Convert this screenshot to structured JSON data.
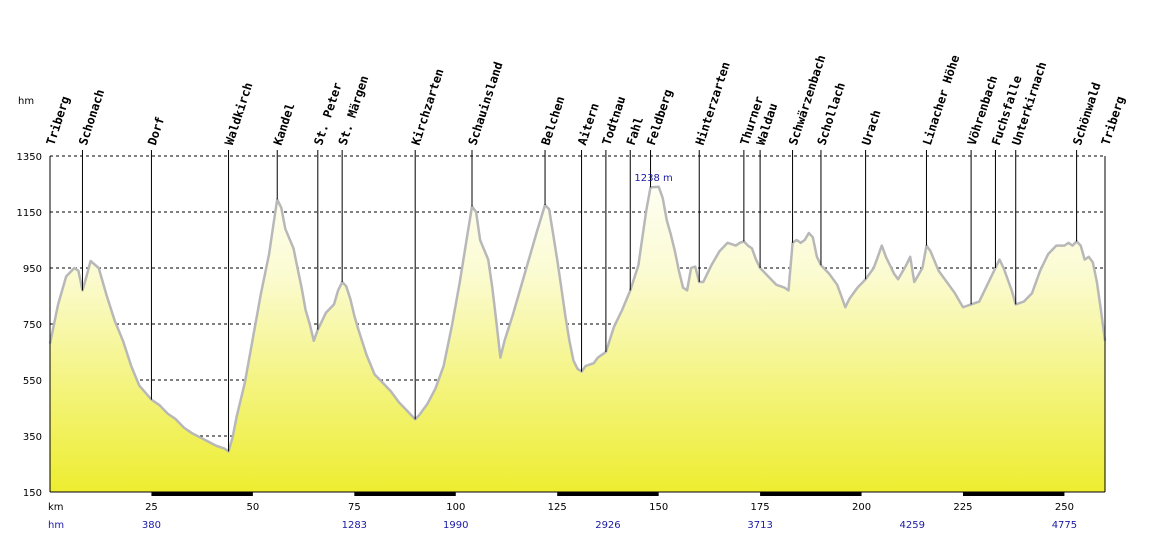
{
  "chart_data": {
    "type": "area",
    "y_unit_label": "hm",
    "x_unit_label": "km",
    "ascent_row_label": "hm",
    "ylim": [
      150,
      1350
    ],
    "xlim": [
      0,
      260
    ],
    "y_ticks": [
      150,
      350,
      550,
      750,
      950,
      1150,
      1350
    ],
    "x_ticks": [
      25,
      50,
      75,
      100,
      125,
      150,
      175,
      200,
      225,
      250
    ],
    "cumulative_ascent": [
      {
        "km": 25,
        "label": "380"
      },
      {
        "km": 75,
        "label": "1283"
      },
      {
        "km": 100,
        "label": "1990"
      },
      {
        "km": 137.5,
        "label": "2926"
      },
      {
        "km": 175,
        "label": "3713"
      },
      {
        "km": 212.5,
        "label": "4259"
      },
      {
        "km": 250,
        "label": "4775"
      }
    ],
    "peak_annotation": {
      "km": 149,
      "label": "1238 m"
    },
    "places": [
      {
        "name": "Triberg",
        "km": 0
      },
      {
        "name": "Schonach",
        "km": 8
      },
      {
        "name": "Dorf",
        "km": 25
      },
      {
        "name": "Waldkirch",
        "km": 44
      },
      {
        "name": "Kandel",
        "km": 56
      },
      {
        "name": "St. Peter",
        "km": 66
      },
      {
        "name": "St. Märgen",
        "km": 72
      },
      {
        "name": "Kirchzarten",
        "km": 90
      },
      {
        "name": "Schauinsland",
        "km": 104
      },
      {
        "name": "Belchen",
        "km": 122
      },
      {
        "name": "Aitern",
        "km": 131
      },
      {
        "name": "Todtnau",
        "km": 137
      },
      {
        "name": "Fahl",
        "km": 143
      },
      {
        "name": "Feldberg",
        "km": 148
      },
      {
        "name": "Hinterzarten",
        "km": 160
      },
      {
        "name": "Thurner",
        "km": 171
      },
      {
        "name": "Waldau",
        "km": 175
      },
      {
        "name": "Schwärzenbach",
        "km": 183
      },
      {
        "name": "Schollach",
        "km": 190
      },
      {
        "name": "Urach",
        "km": 201
      },
      {
        "name": "Linacher Höhe",
        "km": 216
      },
      {
        "name": "Vöhrenbach",
        "km": 227
      },
      {
        "name": "Fuchsfalle",
        "km": 233
      },
      {
        "name": "Unterkirnach",
        "km": 238
      },
      {
        "name": "Schönwald",
        "km": 253
      },
      {
        "name": "Triberg",
        "km": 260
      }
    ],
    "profile": [
      [
        0,
        680
      ],
      [
        2,
        820
      ],
      [
        4,
        920
      ],
      [
        6,
        950
      ],
      [
        7,
        940
      ],
      [
        8,
        870
      ],
      [
        9,
        920
      ],
      [
        10,
        975
      ],
      [
        12,
        950
      ],
      [
        14,
        850
      ],
      [
        16,
        760
      ],
      [
        18,
        690
      ],
      [
        20,
        600
      ],
      [
        22,
        530
      ],
      [
        25,
        480
      ],
      [
        27,
        460
      ],
      [
        29,
        430
      ],
      [
        31,
        410
      ],
      [
        33,
        380
      ],
      [
        35,
        360
      ],
      [
        37,
        345
      ],
      [
        39,
        330
      ],
      [
        41,
        315
      ],
      [
        43,
        305
      ],
      [
        44,
        295
      ],
      [
        45,
        345
      ],
      [
        46,
        420
      ],
      [
        48,
        540
      ],
      [
        50,
        700
      ],
      [
        52,
        860
      ],
      [
        54,
        1000
      ],
      [
        55,
        1100
      ],
      [
        56,
        1195
      ],
      [
        57,
        1165
      ],
      [
        58,
        1090
      ],
      [
        60,
        1020
      ],
      [
        61,
        950
      ],
      [
        62,
        880
      ],
      [
        63,
        800
      ],
      [
        64,
        750
      ],
      [
        65,
        690
      ],
      [
        66,
        730
      ],
      [
        67,
        760
      ],
      [
        68,
        790
      ],
      [
        70,
        820
      ],
      [
        71,
        870
      ],
      [
        72,
        900
      ],
      [
        73,
        885
      ],
      [
        74,
        840
      ],
      [
        75,
        780
      ],
      [
        76,
        730
      ],
      [
        78,
        640
      ],
      [
        80,
        570
      ],
      [
        82,
        540
      ],
      [
        84,
        510
      ],
      [
        86,
        470
      ],
      [
        88,
        440
      ],
      [
        89,
        425
      ],
      [
        90,
        410
      ],
      [
        91,
        425
      ],
      [
        93,
        465
      ],
      [
        95,
        520
      ],
      [
        97,
        600
      ],
      [
        99,
        740
      ],
      [
        101,
        900
      ],
      [
        103,
        1080
      ],
      [
        104,
        1170
      ],
      [
        105,
        1150
      ],
      [
        106,
        1050
      ],
      [
        108,
        980
      ],
      [
        109,
        880
      ],
      [
        110,
        760
      ],
      [
        111,
        630
      ],
      [
        112,
        690
      ],
      [
        114,
        780
      ],
      [
        116,
        880
      ],
      [
        118,
        980
      ],
      [
        120,
        1080
      ],
      [
        122,
        1175
      ],
      [
        123,
        1160
      ],
      [
        124,
        1070
      ],
      [
        125,
        980
      ],
      [
        126,
        880
      ],
      [
        127,
        780
      ],
      [
        128,
        690
      ],
      [
        129,
        620
      ],
      [
        130,
        590
      ],
      [
        131,
        580
      ],
      [
        132,
        600
      ],
      [
        134,
        610
      ],
      [
        135,
        630
      ],
      [
        136,
        640
      ],
      [
        137,
        650
      ],
      [
        139,
        740
      ],
      [
        141,
        800
      ],
      [
        143,
        870
      ],
      [
        145,
        960
      ],
      [
        146,
        1060
      ],
      [
        147,
        1160
      ],
      [
        148,
        1238
      ],
      [
        150,
        1240
      ],
      [
        151,
        1200
      ],
      [
        152,
        1120
      ],
      [
        153,
        1070
      ],
      [
        154,
        1010
      ],
      [
        155,
        940
      ],
      [
        156,
        880
      ],
      [
        157,
        870
      ],
      [
        158,
        950
      ],
      [
        159,
        955
      ],
      [
        160,
        900
      ],
      [
        161,
        900
      ],
      [
        163,
        960
      ],
      [
        165,
        1010
      ],
      [
        167,
        1040
      ],
      [
        169,
        1030
      ],
      [
        170,
        1040
      ],
      [
        171,
        1045
      ],
      [
        172,
        1030
      ],
      [
        173,
        1020
      ],
      [
        174,
        980
      ],
      [
        175,
        950
      ],
      [
        177,
        920
      ],
      [
        179,
        890
      ],
      [
        181,
        880
      ],
      [
        182,
        870
      ],
      [
        183,
        1040
      ],
      [
        184,
        1050
      ],
      [
        185,
        1040
      ],
      [
        186,
        1050
      ],
      [
        187,
        1075
      ],
      [
        188,
        1060
      ],
      [
        189,
        990
      ],
      [
        190,
        960
      ],
      [
        192,
        930
      ],
      [
        194,
        890
      ],
      [
        195,
        850
      ],
      [
        196,
        810
      ],
      [
        197,
        840
      ],
      [
        199,
        880
      ],
      [
        201,
        910
      ],
      [
        203,
        950
      ],
      [
        204,
        990
      ],
      [
        205,
        1030
      ],
      [
        206,
        990
      ],
      [
        208,
        930
      ],
      [
        209,
        910
      ],
      [
        211,
        960
      ],
      [
        212,
        990
      ],
      [
        213,
        900
      ],
      [
        215,
        950
      ],
      [
        216,
        1030
      ],
      [
        217,
        1010
      ],
      [
        219,
        940
      ],
      [
        221,
        900
      ],
      [
        223,
        860
      ],
      [
        225,
        810
      ],
      [
        227,
        820
      ],
      [
        229,
        830
      ],
      [
        231,
        890
      ],
      [
        233,
        950
      ],
      [
        234,
        980
      ],
      [
        235,
        950
      ],
      [
        237,
        870
      ],
      [
        238,
        820
      ],
      [
        240,
        830
      ],
      [
        242,
        860
      ],
      [
        244,
        940
      ],
      [
        246,
        1000
      ],
      [
        248,
        1030
      ],
      [
        250,
        1030
      ],
      [
        251,
        1040
      ],
      [
        252,
        1030
      ],
      [
        253,
        1045
      ],
      [
        254,
        1030
      ],
      [
        255,
        980
      ],
      [
        256,
        990
      ],
      [
        257,
        970
      ],
      [
        258,
        900
      ],
      [
        259,
        800
      ],
      [
        260,
        690
      ]
    ]
  }
}
